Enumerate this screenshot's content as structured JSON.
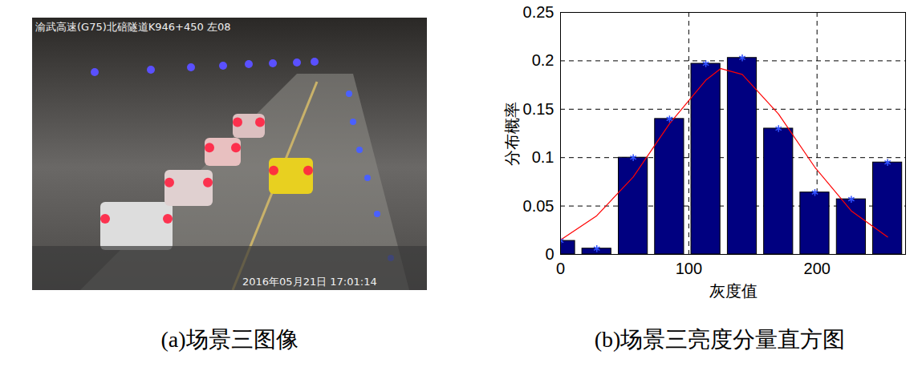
{
  "chart_data": {
    "type": "bar",
    "xlabel": "灰度值",
    "ylabel": "分布概率",
    "caption": "(b)场景三亮度分量直方图",
    "xlim": [
      0,
      269
    ],
    "xticks": [
      0,
      100,
      200
    ],
    "ylim": [
      0,
      0.25
    ],
    "yticks": [
      0,
      0.05,
      0.1,
      0.15,
      0.2,
      0.25
    ],
    "grid": true,
    "series": [
      {
        "type": "bar",
        "color": "#000080",
        "marker": "asterisk",
        "x": [
          0,
          28.3,
          56.7,
          85,
          113.3,
          141.7,
          170,
          198.3,
          226.7,
          255
        ],
        "values": [
          0.014,
          0.006,
          0.1,
          0.14,
          0.197,
          0.203,
          0.13,
          0.064,
          0.057,
          0.095
        ]
      },
      {
        "type": "line",
        "color": "#ff0000",
        "line_style": "solid",
        "x": [
          0,
          28.3,
          56.7,
          85,
          113.3,
          125,
          141.7,
          170,
          198.3,
          226.7,
          255
        ],
        "values": [
          0.015,
          0.04,
          0.08,
          0.135,
          0.18,
          0.192,
          0.186,
          0.145,
          0.09,
          0.045,
          0.018
        ]
      }
    ]
  },
  "image_panel": {
    "caption": "(a)场景三图像",
    "overlay_top": "渝武高速(G75)北碚隧道K946+450 左08",
    "overlay_bottom": "2016年05月21日 17:01:14"
  }
}
